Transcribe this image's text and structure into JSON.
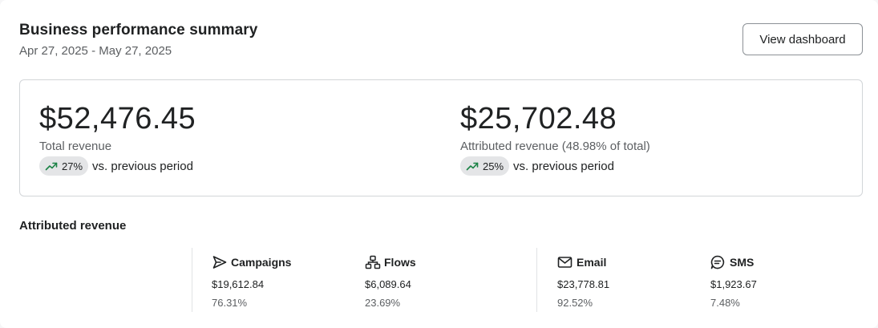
{
  "header": {
    "title": "Business performance summary",
    "date_range": "Apr 27, 2025 - May 27, 2025",
    "view_button": "View dashboard"
  },
  "summary": {
    "total": {
      "value": "$52,476.45",
      "label": "Total revenue",
      "trend": "27%",
      "trend_icon": "trend-up-icon",
      "comparison": "vs. previous period"
    },
    "attributed": {
      "value": "$25,702.48",
      "label": "Attributed revenue (48.98% of total)",
      "trend": "25%",
      "trend_icon": "trend-up-icon",
      "comparison": "vs. previous period"
    }
  },
  "attributed_section": {
    "title": "Attributed revenue",
    "channels": [
      {
        "name": "Campaigns",
        "icon": "send-icon",
        "amount": "$19,612.84",
        "percent": "76.31%"
      },
      {
        "name": "Flows",
        "icon": "flow-icon",
        "amount": "$6,089.64",
        "percent": "23.69%"
      },
      {
        "name": "Email",
        "icon": "mail-icon",
        "amount": "$23,778.81",
        "percent": "92.52%"
      },
      {
        "name": "SMS",
        "icon": "sms-icon",
        "amount": "$1,923.67",
        "percent": "7.48%"
      }
    ]
  },
  "colors": {
    "trend_green": "#1a8245",
    "pill_bg": "#e4e5e7",
    "border": "#d2d5d8"
  }
}
